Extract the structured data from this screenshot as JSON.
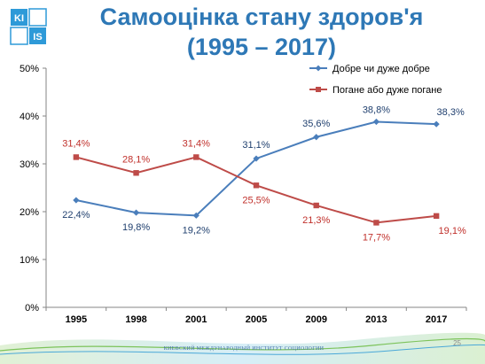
{
  "logo": {
    "text_top": "KI",
    "text_bottom": "IS"
  },
  "title_line1": "Самооцінка стану здоров'я",
  "title_line2": "(1995 – 2017)",
  "footer": {
    "org": "КИЕВСКИЙ МЕЖДУНАРОДНЫЙ ИНСТИТУТ СОЦИОЛОГИИ",
    "page": "25"
  },
  "colors": {
    "good": "#4a7ebb",
    "bad": "#be4b48",
    "title": "#2e78b6"
  },
  "chart_data": {
    "type": "line",
    "categories": [
      "1995",
      "1998",
      "2001",
      "2005",
      "2009",
      "2013",
      "2017"
    ],
    "ylim": [
      0,
      50
    ],
    "yticks": [
      0,
      10,
      20,
      30,
      40,
      50
    ],
    "ytick_labels": [
      "0%",
      "10%",
      "20%",
      "30%",
      "40%",
      "50%"
    ],
    "legend_position": "top-right",
    "grid": false,
    "series": [
      {
        "name": "Добре чи дуже добре",
        "values": [
          22.4,
          19.8,
          19.2,
          31.1,
          35.6,
          38.8,
          38.3
        ],
        "labels": [
          "22,4%",
          "19,8%",
          "19,2%",
          "31,1%",
          "35,6%",
          "38,8%",
          "38,3%"
        ]
      },
      {
        "name": "Погане або дуже погане",
        "values": [
          31.4,
          28.1,
          31.4,
          25.5,
          21.3,
          17.7,
          19.1
        ],
        "labels": [
          "31,4%",
          "28,1%",
          "31,4%",
          "25,5%",
          "21,3%",
          "17,7%",
          "19,1%"
        ]
      }
    ]
  }
}
